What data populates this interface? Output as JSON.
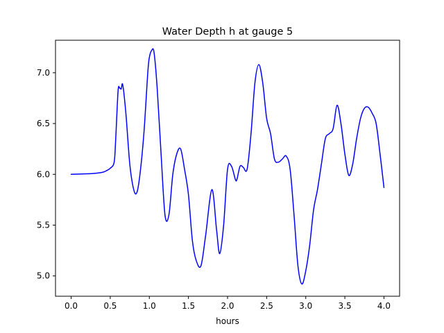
{
  "chart_data": {
    "type": "line",
    "title": "Water Depth h at gauge 5",
    "xlabel": "hours",
    "ylabel": "",
    "xlim": [
      -0.2,
      4.2
    ],
    "ylim": [
      4.8,
      7.32
    ],
    "xticks": [
      "0.0",
      "0.5",
      "1.0",
      "1.5",
      "2.0",
      "2.5",
      "3.0",
      "3.5",
      "4.0"
    ],
    "yticks": [
      "5.0",
      "5.5",
      "6.0",
      "6.5",
      "7.0"
    ],
    "grid": false,
    "line_color": "#0000ff",
    "series": [
      {
        "name": "",
        "x": [
          0.0,
          0.2,
          0.3,
          0.4,
          0.45,
          0.5,
          0.55,
          0.57,
          0.6,
          0.62,
          0.64,
          0.66,
          0.7,
          0.75,
          0.8,
          0.84,
          0.88,
          0.93,
          0.98,
          1.0,
          1.03,
          1.06,
          1.1,
          1.15,
          1.2,
          1.25,
          1.3,
          1.35,
          1.4,
          1.45,
          1.5,
          1.55,
          1.6,
          1.66,
          1.72,
          1.8,
          1.86,
          1.9,
          1.95,
          2.0,
          2.05,
          2.1,
          2.12,
          2.16,
          2.2,
          2.25,
          2.3,
          2.35,
          2.4,
          2.45,
          2.5,
          2.55,
          2.6,
          2.65,
          2.7,
          2.75,
          2.8,
          2.85,
          2.9,
          2.95,
          3.0,
          3.05,
          3.1,
          3.15,
          3.2,
          3.25,
          3.3,
          3.35,
          3.4,
          3.45,
          3.5,
          3.55,
          3.6,
          3.65,
          3.7,
          3.75,
          3.8,
          3.85,
          3.9,
          3.95,
          4.0
        ],
        "y": [
          6.0,
          6.005,
          6.01,
          6.02,
          6.035,
          6.06,
          6.12,
          6.35,
          6.82,
          6.85,
          6.84,
          6.88,
          6.6,
          6.1,
          5.85,
          5.82,
          6.0,
          6.4,
          7.0,
          7.15,
          7.22,
          7.2,
          6.85,
          6.2,
          5.6,
          5.6,
          6.0,
          6.2,
          6.25,
          6.05,
          5.8,
          5.35,
          5.15,
          5.1,
          5.4,
          5.85,
          5.45,
          5.22,
          5.5,
          6.05,
          6.08,
          5.95,
          5.95,
          6.08,
          6.07,
          6.05,
          6.4,
          6.9,
          7.08,
          6.9,
          6.55,
          6.4,
          6.15,
          6.12,
          6.15,
          6.18,
          6.05,
          5.6,
          5.1,
          4.92,
          5.05,
          5.3,
          5.65,
          5.85,
          6.1,
          6.35,
          6.4,
          6.45,
          6.68,
          6.5,
          6.2,
          5.99,
          6.1,
          6.35,
          6.55,
          6.65,
          6.66,
          6.6,
          6.5,
          6.2,
          5.87
        ]
      }
    ]
  }
}
